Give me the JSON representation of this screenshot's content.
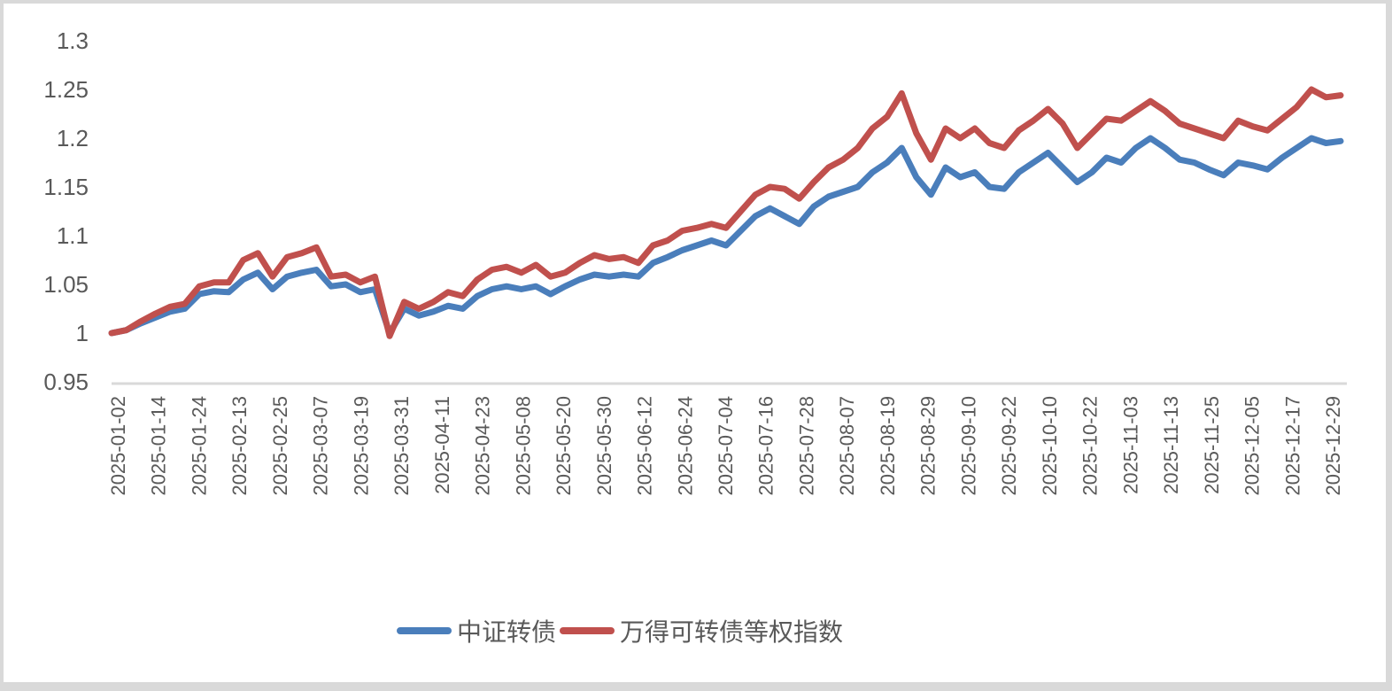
{
  "chart_data": {
    "type": "line",
    "title": "",
    "xlabel": "",
    "ylabel": "",
    "ylim": [
      0.95,
      1.3
    ],
    "yticks": [
      "1.3",
      "1.25",
      "1.2",
      "1.15",
      "1.1",
      "1.05",
      "1",
      "0.95"
    ],
    "ytick_values": [
      1.3,
      1.25,
      1.2,
      1.15,
      1.1,
      1.05,
      1.0,
      0.95
    ],
    "grid": false,
    "legend_position": "bottom",
    "x_tick_labels": [
      "2025-01-02",
      "2025-01-14",
      "2025-01-24",
      "2025-02-13",
      "2025-02-25",
      "2025-03-07",
      "2025-03-19",
      "2025-03-31",
      "2025-04-11",
      "2025-04-23",
      "2025-05-08",
      "2025-05-20",
      "2025-05-30",
      "2025-06-12",
      "2025-06-24",
      "2025-07-04",
      "2025-07-16",
      "2025-07-28",
      "2025-08-07",
      "2025-08-19",
      "2025-08-29",
      "2025-09-10",
      "2025-09-22",
      "2025-10-10",
      "2025-10-22",
      "2025-11-03",
      "2025-11-13",
      "2025-11-25",
      "2025-12-05",
      "2025-12-17",
      "2025-12-29"
    ],
    "series": [
      {
        "name": "中证转债",
        "color": "#4a7ebb",
        "values": [
          1.0,
          1.003,
          1.01,
          1.016,
          1.022,
          1.025,
          1.04,
          1.043,
          1.042,
          1.055,
          1.062,
          1.045,
          1.058,
          1.062,
          1.065,
          1.048,
          1.05,
          1.042,
          1.045,
          1.0,
          1.025,
          1.018,
          1.022,
          1.028,
          1.025,
          1.038,
          1.045,
          1.048,
          1.045,
          1.048,
          1.04,
          1.048,
          1.055,
          1.06,
          1.058,
          1.06,
          1.058,
          1.072,
          1.078,
          1.085,
          1.09,
          1.095,
          1.09,
          1.105,
          1.12,
          1.128,
          1.12,
          1.112,
          1.13,
          1.14,
          1.145,
          1.15,
          1.165,
          1.175,
          1.19,
          1.16,
          1.142,
          1.17,
          1.16,
          1.165,
          1.15,
          1.148,
          1.165,
          1.175,
          1.185,
          1.17,
          1.155,
          1.165,
          1.18,
          1.175,
          1.19,
          1.2,
          1.19,
          1.178,
          1.175,
          1.168,
          1.162,
          1.175,
          1.172,
          1.168,
          1.18,
          1.19,
          1.2,
          1.195,
          1.197
        ]
      },
      {
        "name": "万得可转债等权指数",
        "color": "#c0504d",
        "values": [
          1.0,
          1.003,
          1.012,
          1.02,
          1.027,
          1.03,
          1.048,
          1.052,
          1.052,
          1.075,
          1.082,
          1.058,
          1.078,
          1.082,
          1.088,
          1.058,
          1.06,
          1.052,
          1.058,
          0.997,
          1.032,
          1.025,
          1.032,
          1.042,
          1.038,
          1.055,
          1.065,
          1.068,
          1.062,
          1.07,
          1.058,
          1.062,
          1.072,
          1.08,
          1.076,
          1.078,
          1.072,
          1.09,
          1.095,
          1.105,
          1.108,
          1.112,
          1.108,
          1.125,
          1.142,
          1.15,
          1.148,
          1.138,
          1.155,
          1.17,
          1.178,
          1.19,
          1.21,
          1.222,
          1.246,
          1.205,
          1.178,
          1.21,
          1.2,
          1.21,
          1.195,
          1.19,
          1.208,
          1.218,
          1.23,
          1.215,
          1.19,
          1.205,
          1.22,
          1.218,
          1.228,
          1.238,
          1.228,
          1.215,
          1.21,
          1.205,
          1.2,
          1.218,
          1.212,
          1.208,
          1.22,
          1.232,
          1.25,
          1.242,
          1.244
        ]
      }
    ]
  },
  "legend": {
    "items": [
      {
        "label": "中证转债",
        "color": "#4a7ebb"
      },
      {
        "label": "万得可转债等权指数",
        "color": "#c0504d"
      }
    ]
  }
}
